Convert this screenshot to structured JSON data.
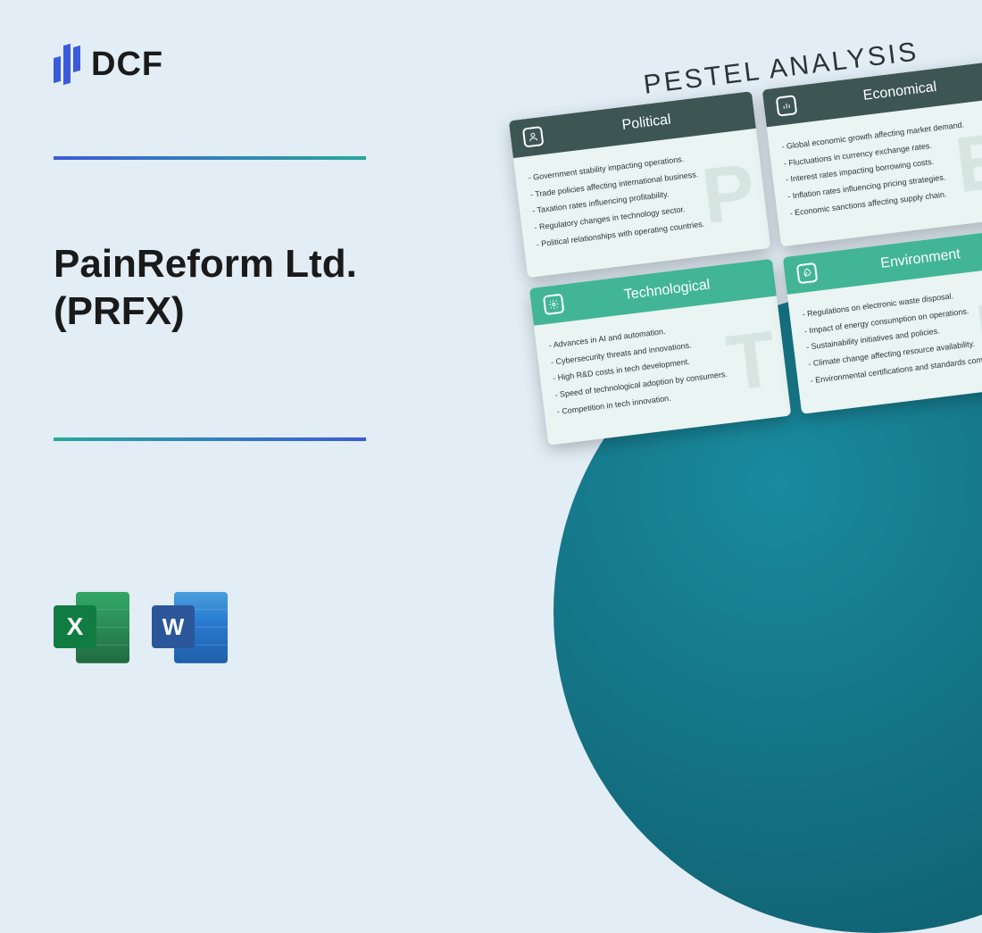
{
  "logo": {
    "text": "DCF"
  },
  "title": "PainReform Ltd.\n(PRFX)",
  "pestel_title": "PESTEL ANALYSIS",
  "colors": {
    "bg": "#e2edf5",
    "circle_a": "#1a8a9e",
    "circle_b": "#0d5968",
    "divider_a": "#3b5bdb",
    "divider_b": "#2aa79b",
    "card_dark": "#3d5654",
    "card_light": "#42b597",
    "card_body": "#eaf4f2"
  },
  "icons": [
    {
      "name": "excel-icon",
      "label": "X",
      "color": "#107c41"
    },
    {
      "name": "word-icon",
      "label": "W",
      "color": "#2b579a"
    }
  ],
  "cards": [
    {
      "key": "political",
      "title": "Political",
      "watermark": "P",
      "theme": "dark",
      "icon": "person",
      "items": [
        "- Government stability impacting operations.",
        "- Trade policies affecting international business.",
        "- Taxation rates influencing profitability.",
        "- Regulatory changes in technology sector.",
        "- Political relationships with operating countries."
      ]
    },
    {
      "key": "economical",
      "title": "Economical",
      "watermark": "E",
      "theme": "dark",
      "icon": "chart",
      "items": [
        "- Global economic growth affecting market demand.",
        "- Fluctuations in currency exchange rates.",
        "- Interest rates impacting borrowing costs.",
        "- Inflation rates influencing pricing strategies.",
        "- Economic sanctions affecting supply chain."
      ]
    },
    {
      "key": "technological",
      "title": "Technological",
      "watermark": "T",
      "theme": "light",
      "icon": "gear",
      "items": [
        "- Advances in AI and automation.",
        "- Cybersecurity threats and innovations.",
        "- High R&D costs in tech development.",
        "- Speed of technological adoption by consumers.",
        "- Competition in tech innovation."
      ]
    },
    {
      "key": "environment",
      "title": "Environment",
      "watermark": "E",
      "theme": "light",
      "icon": "leaf",
      "items": [
        "- Regulations on electronic waste disposal.",
        "- Impact of energy consumption on operations.",
        "- Sustainability initiatives and policies.",
        "- Climate change affecting resource availability.",
        "- Environmental certifications and standards compliance."
      ]
    }
  ]
}
